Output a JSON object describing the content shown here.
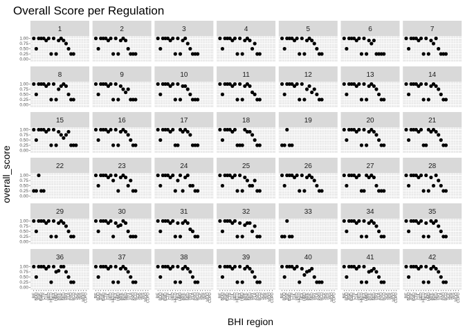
{
  "chart_data": {
    "type": "scatter",
    "title": "Overall Score per Regulation",
    "xlabel": "BHI region",
    "ylabel": "overall_score",
    "ylim": [
      0,
      1
    ],
    "y_ticks": [
      "0.00",
      "0.25",
      "0.50",
      "0.75",
      "1.00"
    ],
    "x_ticks": [
      "BIE",
      "BOO",
      "BSP",
      "BWD",
      "CTR",
      "CUL",
      "HED",
      "HELD",
      "HEX",
      "HMD",
      "MPF",
      "MSP",
      "NED",
      "PHY",
      "PLB",
      "PRO",
      "RCO",
      "SCP",
      "SPR",
      "WIS",
      "WOO",
      "COPD"
    ],
    "facet_grid": {
      "rows": 6,
      "cols": 7
    },
    "facets": [
      {
        "label": "1",
        "values": [
          1,
          0.5,
          1,
          1,
          1,
          0.9,
          1,
          0.25,
          1,
          0.25,
          0.9,
          1,
          0.9,
          0.75,
          0.5,
          0.25,
          0.25
        ]
      },
      {
        "label": "2",
        "values": [
          1,
          0.5,
          1,
          1,
          1,
          0.9,
          1,
          0.25,
          1,
          0.25,
          0.9,
          1,
          0.9,
          0.5,
          0.25,
          0.25,
          0.25
        ]
      },
      {
        "label": "3",
        "values": [
          1,
          0.5,
          1,
          1,
          1,
          0.9,
          1,
          0.25,
          1,
          0.25,
          0.9,
          1,
          0.75,
          0.5,
          0.25,
          0.25,
          0.25
        ]
      },
      {
        "label": "4",
        "values": [
          1,
          0.5,
          1,
          1,
          1,
          0.9,
          1,
          0.25,
          1,
          0.25,
          0.9,
          1,
          0.9,
          0.5,
          0.75,
          0.25,
          0.25
        ]
      },
      {
        "label": "5",
        "values": [
          1,
          0.5,
          1,
          1,
          1,
          0.9,
          1,
          0.25,
          1,
          0.25,
          0.9,
          1,
          0.9,
          0.75,
          0.5,
          0.25,
          0.25
        ]
      },
      {
        "label": "6",
        "values": [
          1,
          0.5,
          1,
          1,
          1,
          0.9,
          1,
          0.25,
          1,
          0.25,
          0.9,
          0.75,
          0.9,
          0.25,
          0.25,
          0.25,
          0.25
        ]
      },
      {
        "label": "7",
        "values": [
          1,
          0.5,
          1,
          1,
          1,
          0.9,
          1,
          0.25,
          1,
          0.25,
          0.9,
          0.75,
          1,
          0.5,
          0.25,
          0.25,
          0.25
        ]
      },
      {
        "label": "8",
        "values": [
          1,
          0.5,
          1,
          1,
          1,
          0.9,
          1,
          0.25,
          1,
          0.25,
          0.75,
          0.9,
          1,
          0.9,
          0.5,
          0.25,
          0.25
        ]
      },
      {
        "label": "9",
        "values": [
          1,
          0.5,
          1,
          1,
          1,
          0.9,
          1,
          0.25,
          1,
          0.25,
          0.9,
          0.75,
          0.6,
          0.75,
          0.25,
          0.25,
          0.25
        ]
      },
      {
        "label": "10",
        "values": [
          1,
          0.5,
          1,
          1,
          1,
          0.9,
          1,
          0.25,
          1,
          0.25,
          0.9,
          0.9,
          0.75,
          0.5,
          0.25,
          0.25,
          0.25
        ]
      },
      {
        "label": "11",
        "values": [
          1,
          0.5,
          1,
          1,
          1,
          0.9,
          1,
          0.25,
          1,
          0.25,
          0.9,
          1,
          0.9,
          0.6,
          0.5,
          0.25,
          0.25
        ]
      },
      {
        "label": "12",
        "values": [
          1,
          0.5,
          1,
          1,
          1,
          0.9,
          1,
          0.25,
          1,
          0.25,
          0.75,
          0.9,
          0.6,
          0.75,
          0.5,
          0.25,
          0.25
        ]
      },
      {
        "label": "13",
        "values": [
          1,
          0.5,
          1,
          1,
          1,
          0.9,
          1,
          0.25,
          1,
          0.25,
          0.9,
          1,
          0.9,
          0.75,
          0.5,
          0.25,
          0.25
        ]
      },
      {
        "label": "14",
        "values": [
          1,
          0.5,
          1,
          1,
          1,
          0.9,
          1,
          0.25,
          1,
          0.25,
          0.9,
          1,
          0.9,
          0.75,
          0.5,
          0.25,
          0.25
        ]
      },
      {
        "label": "15",
        "values": [
          1,
          0.5,
          1,
          1,
          1,
          0.9,
          1,
          0.25,
          1,
          0.25,
          0.9,
          0.75,
          0.6,
          0.75,
          0.9,
          0.25,
          0.25,
          0.25
        ]
      },
      {
        "label": "16",
        "values": [
          1,
          0.5,
          1,
          1,
          1,
          0.9,
          1,
          0.25,
          1,
          0.25,
          0.9,
          1,
          0.9,
          0.75,
          0.5,
          0.25,
          0.25
        ]
      },
      {
        "label": "17",
        "values": [
          1,
          0.5,
          1,
          1,
          1,
          0.9,
          1,
          0.25,
          0.25,
          1,
          0.9,
          1,
          0.9,
          0.75,
          0.25,
          0.25,
          0.25
        ]
      },
      {
        "label": "18",
        "values": [
          1,
          0.5,
          1,
          1,
          1,
          0.9,
          1,
          0.25,
          0.25,
          0.25,
          1,
          0.9,
          0.9,
          0.75,
          0.5,
          0.25,
          0.25
        ]
      },
      {
        "label": "19",
        "values": [
          0.25,
          0.25,
          1,
          0.25,
          0.25
        ]
      },
      {
        "label": "20",
        "values": [
          1,
          0.5,
          1,
          1,
          1,
          0.9,
          1,
          0.25,
          1,
          0.25,
          0.9,
          1,
          0.9,
          0.75,
          0.5,
          0.25,
          0.25
        ]
      },
      {
        "label": "21",
        "values": [
          1,
          0.5,
          1,
          1,
          1,
          0.9,
          1,
          0.25,
          0.25,
          1,
          0.9,
          1,
          0.9,
          0.75,
          0.5,
          0.25,
          0.25
        ]
      },
      {
        "label": "22",
        "values": [
          0.25,
          0.25,
          1,
          0.25,
          0.25
        ]
      },
      {
        "label": "23",
        "values": [
          1,
          0.5,
          1,
          1,
          1,
          0.9,
          1,
          0.75,
          1,
          0.25,
          0.9,
          1,
          0.9,
          0.5,
          0.75,
          0.25,
          0.25
        ]
      },
      {
        "label": "24",
        "values": [
          1,
          0.5,
          1,
          1,
          1,
          0.9,
          1,
          0.25,
          0.75,
          1,
          0.25,
          0.9,
          1,
          0.5,
          0.5,
          0.25,
          0.25
        ]
      },
      {
        "label": "25",
        "values": [
          1,
          0.5,
          1,
          1,
          1,
          0.9,
          1,
          0.25,
          1,
          0.25,
          0.9,
          0.75,
          0.5,
          0.5,
          0.75,
          0.25,
          0.25
        ]
      },
      {
        "label": "26",
        "values": [
          1,
          0.5,
          1,
          1,
          1,
          0.9,
          1,
          0.25,
          1,
          0.25,
          0.9,
          1,
          0.9,
          0.75,
          0.5,
          0.25,
          0.25
        ]
      },
      {
        "label": "27",
        "values": [
          1,
          0.5,
          1,
          1,
          1,
          0.9,
          1,
          0.25,
          0.25,
          1,
          0.9,
          1,
          0.9,
          0.5,
          0.25,
          0.25,
          0.25
        ]
      },
      {
        "label": "28",
        "values": [
          1,
          0.5,
          1,
          1,
          1,
          0.9,
          1,
          0.25,
          1,
          0.25,
          0.9,
          0.5,
          1,
          0.75,
          0.5,
          0.25,
          0.25
        ]
      },
      {
        "label": "29",
        "values": [
          1,
          0.5,
          1,
          1,
          1,
          0.9,
          1,
          0.25,
          1,
          0.25,
          0.9,
          1,
          0.9,
          0.75,
          0.5,
          0.25,
          0.25
        ]
      },
      {
        "label": "30",
        "values": [
          1,
          0.5,
          1,
          1,
          1,
          0.9,
          1,
          0.25,
          0.9,
          0.75,
          0.8,
          1,
          0.9,
          0.5,
          0.25,
          0.25,
          0.25
        ]
      },
      {
        "label": "31",
        "values": [
          1,
          0.5,
          1,
          1,
          1,
          0.9,
          1,
          0.25,
          0.9,
          0.25,
          0.9,
          1,
          0.9,
          0.6,
          0.5,
          0.25,
          0.25
        ]
      },
      {
        "label": "32",
        "values": [
          1,
          0.5,
          1,
          1,
          1,
          0.9,
          1,
          0.25,
          0.9,
          0.25,
          0.8,
          0.9,
          0.9,
          0.5,
          0.75,
          0.25,
          0.25
        ]
      },
      {
        "label": "33",
        "values": [
          0.25,
          0.25,
          1,
          0.25,
          0.25
        ]
      },
      {
        "label": "34",
        "values": [
          1,
          0.5,
          1,
          1,
          1,
          0.9,
          1,
          0.25,
          1,
          0.25,
          0.9,
          1,
          0.9,
          0.75,
          0.5,
          0.25,
          0.25
        ]
      },
      {
        "label": "35",
        "values": [
          1,
          0.5,
          1,
          1,
          1,
          0.9,
          1,
          0.25,
          0.9,
          0.25,
          1,
          0.9,
          1,
          0.75,
          0.5,
          0.25,
          0.25
        ]
      },
      {
        "label": "36",
        "values": [
          1,
          0.5,
          1,
          1,
          1,
          0.9,
          1,
          0.25,
          1,
          0.75,
          0.8,
          1,
          1,
          0.75,
          0.5,
          0.25,
          0.25
        ]
      },
      {
        "label": "37",
        "values": [
          1,
          0.5,
          1,
          1,
          1,
          0.9,
          1,
          0.25,
          1,
          0.25,
          0.9,
          1,
          0.9,
          0.75,
          0.5,
          0.25,
          0.25
        ]
      },
      {
        "label": "38",
        "values": [
          1,
          0.5,
          1,
          1,
          1,
          0.9,
          1,
          0.25,
          1,
          0.25,
          0.9,
          1,
          0.9,
          0.75,
          0.5,
          0.25,
          0.25
        ]
      },
      {
        "label": "39",
        "values": [
          1,
          0.5,
          1,
          1,
          1,
          0.9,
          1,
          0.25,
          1,
          0.25,
          0.9,
          1,
          0.9,
          0.75,
          0.5,
          0.25,
          0.25
        ]
      },
      {
        "label": "40",
        "values": [
          1,
          0.5,
          1,
          1,
          1,
          0.9,
          1,
          0.25,
          0.9,
          0.6,
          0.75,
          0.8,
          0.9,
          0.5,
          0.25,
          0.25,
          0.25
        ]
      },
      {
        "label": "41",
        "values": [
          1,
          0.5,
          1,
          1,
          1,
          0.9,
          1,
          0.25,
          1,
          0.25,
          0.75,
          0.8,
          0.9,
          0.75,
          0.5,
          0.25,
          0.25
        ]
      },
      {
        "label": "42",
        "values": [
          1,
          0.5,
          1,
          1,
          1,
          0.9,
          1,
          0.25,
          1,
          0.25,
          0.9,
          1,
          0.9,
          0.75,
          0.5,
          0.25,
          0.25
        ]
      }
    ],
    "grid": true,
    "panel_background": "#ebebeb",
    "strip_background": "#d9d9d9",
    "point_color": "#000000"
  }
}
